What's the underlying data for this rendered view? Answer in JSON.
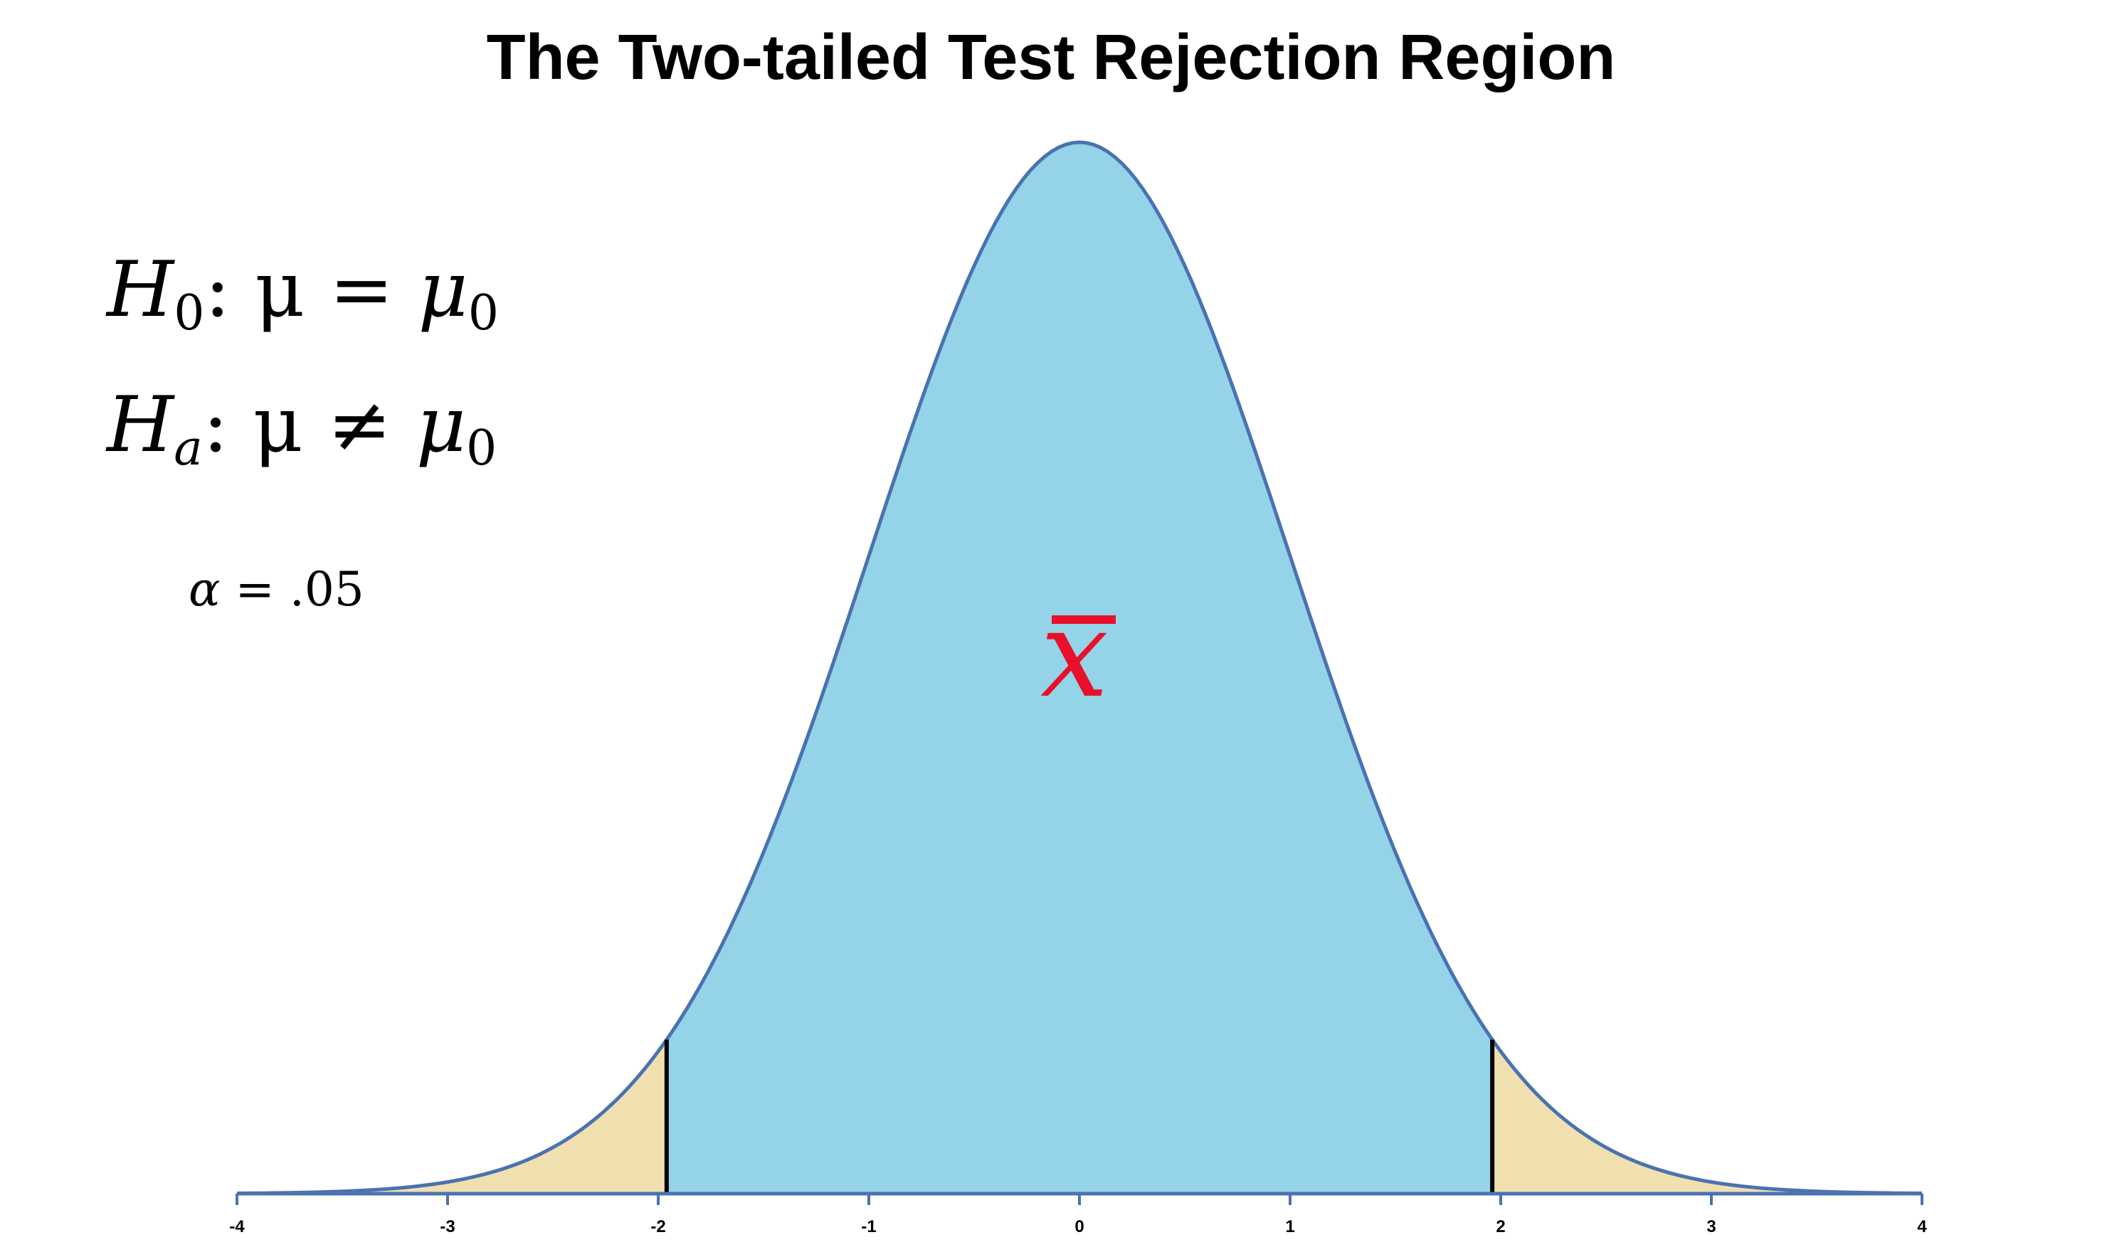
{
  "chart_data": {
    "type": "area",
    "title": "The Two-tailed Test Rejection Region",
    "distribution": "standard normal",
    "xlim": [
      -4,
      4
    ],
    "x_ticks": [
      -4,
      -3,
      -2,
      -1,
      0,
      1,
      2,
      3,
      4
    ],
    "x_tick_labels": [
      "-4",
      "-3",
      "-2",
      "-1",
      "0",
      "1",
      "2",
      "3",
      "4"
    ],
    "critical_values": [
      -1.96,
      1.96
    ],
    "regions": [
      {
        "x_from": -4,
        "x_to": -1.96,
        "color": "#f0e0b0"
      },
      {
        "x_from": -1.96,
        "x_to": 1.96,
        "color": "#95d3e9"
      },
      {
        "x_from": 1.96,
        "x_to": 4,
        "color": "#f0e0b0"
      }
    ],
    "curve_color": "#4a72b2",
    "grid": false,
    "annotations": {
      "h0": {
        "symbol": "H",
        "sub": "0",
        "rel": ": μ = ",
        "param": "μ",
        "param_sub": "0"
      },
      "ha": {
        "symbol": "H",
        "sub": "a",
        "rel": ": μ ≠ ",
        "param": "μ",
        "param_sub": "0"
      },
      "alpha": {
        "symbol": "α",
        "text": " = .05"
      },
      "statistic": {
        "symbol": "x",
        "color": "#e8102a"
      }
    }
  }
}
